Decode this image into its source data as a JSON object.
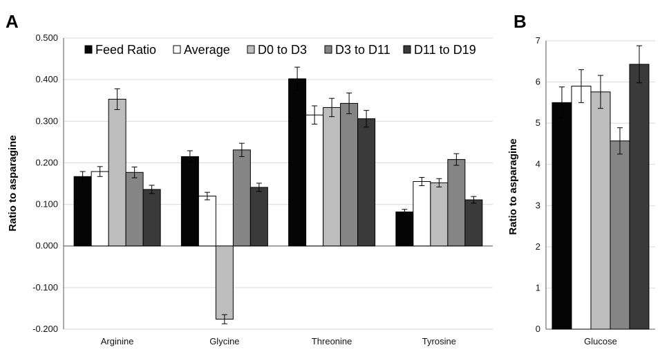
{
  "panels": {
    "a_letter": "A",
    "b_letter": "B"
  },
  "series_colors": {
    "Feed Ratio": "#050505",
    "Average": "#ffffff",
    "D0 to D3": "#bdbdbd",
    "D3 to D11": "#858585",
    "D11 to D19": "#3a3a3a"
  },
  "chart_data": [
    {
      "type": "bar",
      "panel": "A",
      "categories": [
        "Arginine",
        "Glycine",
        "Threonine",
        "Tyrosine"
      ],
      "series": [
        {
          "name": "Feed Ratio",
          "values": [
            0.167,
            0.215,
            0.402,
            0.082
          ],
          "errors": [
            0.012,
            0.014,
            0.028,
            0.006
          ]
        },
        {
          "name": "Average",
          "values": [
            0.179,
            0.12,
            0.315,
            0.155
          ],
          "errors": [
            0.012,
            0.009,
            0.022,
            0.01
          ]
        },
        {
          "name": "D0 to D3",
          "values": [
            0.353,
            -0.176,
            0.333,
            0.152
          ],
          "errors": [
            0.025,
            0.011,
            0.022,
            0.01
          ]
        },
        {
          "name": "D3 to D11",
          "values": [
            0.177,
            0.231,
            0.343,
            0.208
          ],
          "errors": [
            0.013,
            0.016,
            0.025,
            0.014
          ]
        },
        {
          "name": "D11 to D19",
          "values": [
            0.136,
            0.141,
            0.306,
            0.111
          ],
          "errors": [
            0.01,
            0.01,
            0.02,
            0.008
          ]
        }
      ],
      "ylabel": "Ratio to asparagine",
      "ylim": [
        -0.2,
        0.5
      ],
      "yticks": [
        "0.500",
        "0.400",
        "0.300",
        "0.200",
        "0.100",
        "0.000",
        "-0.100",
        "-0.200"
      ],
      "grid": true,
      "legend": "top"
    },
    {
      "type": "bar",
      "panel": "B",
      "categories": [
        "Glucose"
      ],
      "series": [
        {
          "name": "Feed Ratio",
          "values": [
            5.5
          ],
          "errors": [
            0.38
          ]
        },
        {
          "name": "Average",
          "values": [
            5.9
          ],
          "errors": [
            0.4
          ]
        },
        {
          "name": "D0 to D3",
          "values": [
            5.76
          ],
          "errors": [
            0.4
          ]
        },
        {
          "name": "D3 to D11",
          "values": [
            4.57
          ],
          "errors": [
            0.32
          ]
        },
        {
          "name": "D11 to D19",
          "values": [
            6.43
          ],
          "errors": [
            0.45
          ]
        }
      ],
      "ylabel": "Ratio to asparagine",
      "ylim": [
        0,
        7
      ],
      "yticks": [
        "7",
        "6",
        "5",
        "4",
        "3",
        "2",
        "1",
        "0"
      ],
      "grid": true
    }
  ]
}
